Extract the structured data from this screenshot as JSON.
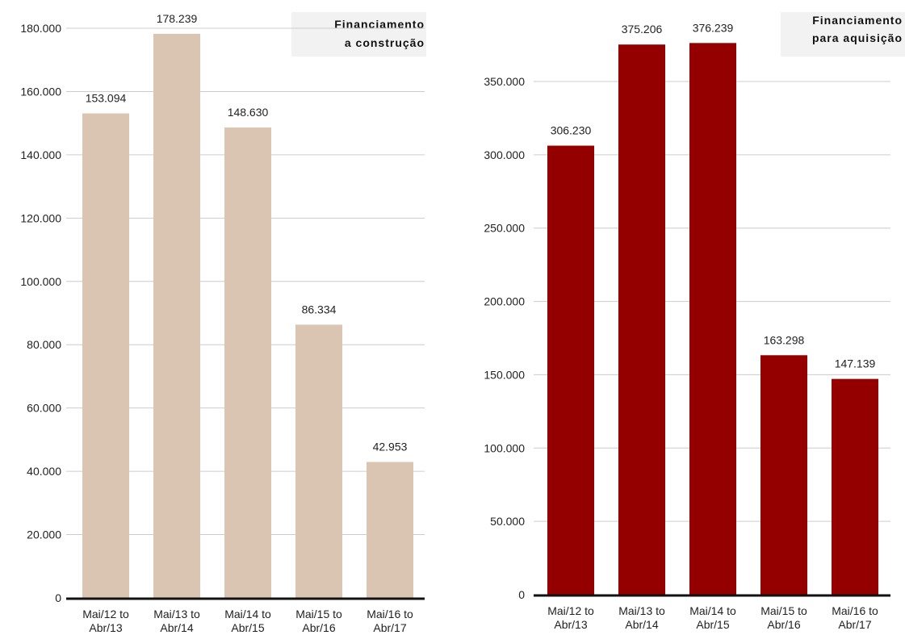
{
  "chart_data": [
    {
      "type": "bar",
      "title": [
        "Financiamento",
        "a construção"
      ],
      "categories": [
        [
          "Mai/12 to",
          "Abr/13"
        ],
        [
          "Mai/13 to",
          "Abr/14"
        ],
        [
          "Mai/14 to",
          "Abr/15"
        ],
        [
          "Mai/15 to",
          "Abr/16"
        ],
        [
          "Mai/16 to",
          "Abr/17"
        ]
      ],
      "values": [
        153094,
        178239,
        148630,
        86334,
        42953
      ],
      "value_labels": [
        "153.094",
        "178.239",
        "148.630",
        "86.334",
        "42.953"
      ],
      "yticks": [
        0,
        20000,
        40000,
        60000,
        80000,
        100000,
        120000,
        140000,
        160000,
        180000
      ],
      "ytick_labels": [
        "0",
        "20.000",
        "40.000",
        "60.000",
        "80.000",
        "100.000",
        "120.000",
        "140.000",
        "160.000",
        "180.000"
      ],
      "ylim": [
        0,
        180000
      ],
      "xlabel": "",
      "ylabel": "",
      "grid": true,
      "legend": "none",
      "bar_color": "#d9c5b2"
    },
    {
      "type": "bar",
      "title": [
        "Financiamento",
        "para aquisição"
      ],
      "categories": [
        [
          "Mai/12 to",
          "Abr/13"
        ],
        [
          "Mai/13 to",
          "Abr/14"
        ],
        [
          "Mai/14 to",
          "Abr/15"
        ],
        [
          "Mai/15 to",
          "Abr/16"
        ],
        [
          "Mai/16 to",
          "Abr/17"
        ]
      ],
      "values": [
        306230,
        375206,
        376239,
        163298,
        147139
      ],
      "value_labels": [
        "306.230",
        "375.206",
        "376.239",
        "163.298",
        "147.139"
      ],
      "yticks": [
        0,
        50000,
        100000,
        150000,
        200000,
        250000,
        300000,
        350000
      ],
      "ytick_labels": [
        "0",
        "50.000",
        "100.000",
        "150.000",
        "200.000",
        "250.000",
        "300.000",
        "350.000"
      ],
      "ylim": [
        0,
        350000
      ],
      "xlabel": "",
      "ylabel": "",
      "grid": true,
      "legend": "none",
      "bar_color": "#940000"
    }
  ]
}
